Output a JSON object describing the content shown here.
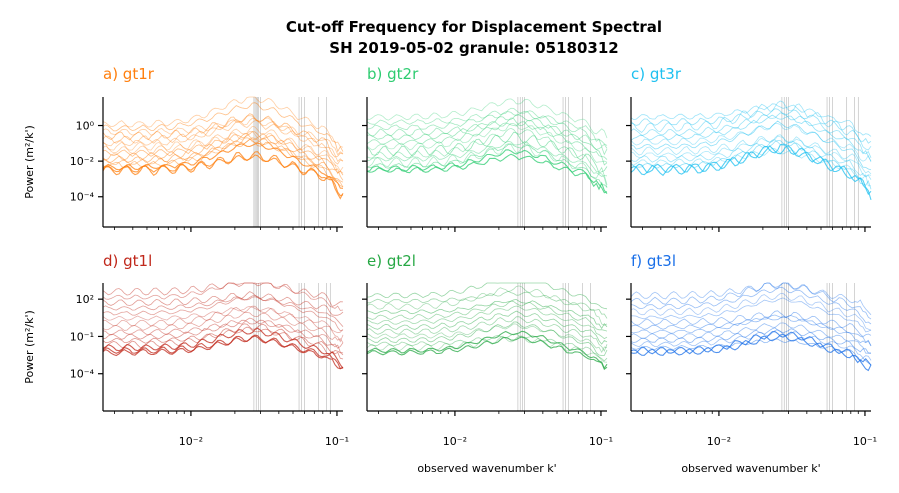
{
  "figure": {
    "title_line1": "Cut-off Frequency for Displacement Spectral",
    "title_line2": "SH 2019-05-02 granule: 05180312"
  },
  "chart_data": [
    {
      "panel": "a) gt1r",
      "type": "line",
      "color": "#ff7f0e",
      "xlabel": "",
      "ylabel": "Power (m²/k')",
      "xscale": "log",
      "yscale": "log",
      "xlim": [
        0.0025,
        0.11
      ],
      "ylim": [
        2e-06,
        40
      ],
      "yticks": [
        "10⁰",
        "10⁻²",
        "10⁻⁴"
      ],
      "ytick_values": [
        1,
        0.01,
        0.0001
      ],
      "cutoff_k": [
        0.027,
        0.0275,
        0.028,
        0.0285,
        0.029,
        0.03,
        0.055,
        0.057,
        0.06,
        0.075,
        0.085
      ],
      "n_series": 16,
      "y_level_range": [
        0.003,
        1.2
      ],
      "peak_k": 0.028
    },
    {
      "panel": "b) gt2r",
      "type": "line",
      "color": "#2ecc71",
      "xlabel": "",
      "ylabel": "",
      "xscale": "log",
      "yscale": "log",
      "xlim": [
        0.0025,
        0.11
      ],
      "ylim": [
        2e-06,
        40
      ],
      "cutoff_k": [
        0.027,
        0.028,
        0.029,
        0.03,
        0.055,
        0.057,
        0.06,
        0.075,
        0.085
      ],
      "n_series": 14,
      "y_level_range": [
        0.003,
        3
      ],
      "peak_k": 0.028
    },
    {
      "panel": "c) gt3r",
      "type": "line",
      "color": "#1ec0f0",
      "xlabel": "",
      "ylabel": "",
      "xscale": "log",
      "yscale": "log",
      "xlim": [
        0.0025,
        0.11
      ],
      "ylim": [
        2e-06,
        40
      ],
      "cutoff_k": [
        0.027,
        0.028,
        0.029,
        0.03,
        0.055,
        0.057,
        0.06,
        0.075,
        0.085,
        0.09
      ],
      "n_series": 14,
      "y_level_range": [
        0.003,
        3
      ],
      "peak_k": 0.028
    },
    {
      "panel": "d) gt1l",
      "type": "line",
      "color": "#c0281b",
      "xlabel": "",
      "ylabel": "Power (m²/k')",
      "xscale": "log",
      "yscale": "log",
      "xlim": [
        0.0025,
        0.11
      ],
      "ylim": [
        1e-07,
        2000
      ],
      "yticks": [
        "10²",
        "10⁻¹",
        "10⁻⁴"
      ],
      "ytick_values": [
        100,
        0.1,
        0.0001
      ],
      "cutoff_k": [
        0.027,
        0.028,
        0.029,
        0.03,
        0.055,
        0.057,
        0.06,
        0.075,
        0.085,
        0.09
      ],
      "n_series": 15,
      "y_level_range": [
        0.005,
        400
      ],
      "peak_k": 0.028
    },
    {
      "panel": "e) gt2l",
      "type": "line",
      "color": "#27a845",
      "xlabel": "observed wavenumber k'",
      "ylabel": "",
      "xscale": "log",
      "yscale": "log",
      "xlim": [
        0.0025,
        0.11
      ],
      "ylim": [
        1e-07,
        2000
      ],
      "cutoff_k": [
        0.027,
        0.028,
        0.029,
        0.03,
        0.055,
        0.057,
        0.06,
        0.075,
        0.085
      ],
      "n_series": 14,
      "y_level_range": [
        0.005,
        200
      ],
      "peak_k": 0.028
    },
    {
      "panel": "f) gt3l",
      "type": "line",
      "color": "#1a6fe8",
      "xlabel": "observed wavenumber k'",
      "ylabel": "",
      "xscale": "log",
      "yscale": "log",
      "xlim": [
        0.0025,
        0.11
      ],
      "ylim": [
        1e-07,
        2000
      ],
      "cutoff_k": [
        0.027,
        0.028,
        0.029,
        0.03,
        0.055,
        0.057,
        0.06,
        0.075,
        0.085
      ],
      "n_series": 14,
      "y_level_range": [
        0.005,
        200
      ],
      "peak_k": 0.028
    }
  ],
  "xticks": [
    "10⁻²",
    "10⁻¹"
  ],
  "xtick_values": [
    0.01,
    0.1
  ],
  "xlabel_bottom": "observed wavenumber k'"
}
